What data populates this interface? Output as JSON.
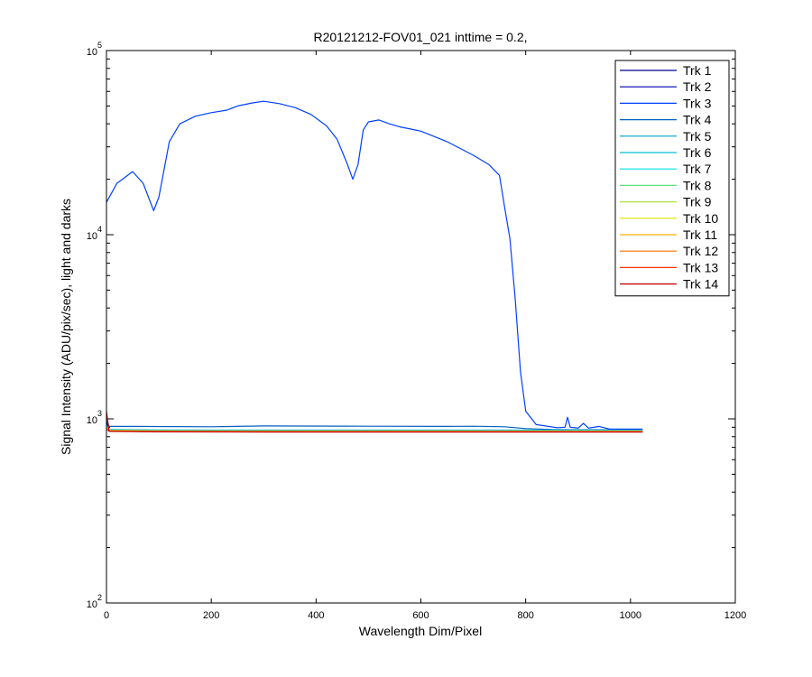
{
  "chart_data": {
    "type": "line",
    "title": "R20121212-FOV01_021 inttime = 0.2,",
    "xlabel": "Wavelength Dim/Pixel",
    "ylabel": "Signal Intensity (ADU/pix/sec), light and darks",
    "xlim": [
      0,
      1200
    ],
    "ylim": [
      100,
      100000
    ],
    "yscale": "log",
    "x_ticks": [
      0,
      200,
      400,
      600,
      800,
      1000,
      1200
    ],
    "x_tick_labels": [
      "0",
      "200",
      "400",
      "600",
      "800",
      "1000",
      "1200"
    ],
    "y_ticks": [
      {
        "value": 100,
        "base": "10",
        "exp": "2"
      },
      {
        "value": 1000,
        "base": "10",
        "exp": "3"
      },
      {
        "value": 10000,
        "base": "10",
        "exp": "4"
      },
      {
        "value": 100000,
        "base": "10",
        "exp": "5"
      }
    ],
    "grid": false,
    "legend_position": "top-right",
    "series": [
      {
        "name": "Trk 1",
        "color": "#00008f",
        "x": [
          0,
          5,
          100,
          300,
          500,
          700,
          900,
          1023
        ],
        "y": [
          1000,
          860,
          855,
          852,
          852,
          852,
          852,
          852
        ]
      },
      {
        "name": "Trk 2",
        "color": "#0000b0",
        "x": [
          0,
          5,
          100,
          300,
          500,
          700,
          900,
          1023
        ],
        "y": [
          950,
          858,
          852,
          850,
          850,
          850,
          850,
          850
        ]
      },
      {
        "name": "Trk 3",
        "color": "#0040ff",
        "x": [
          0,
          20,
          50,
          70,
          90,
          100,
          120,
          140,
          170,
          200,
          230,
          250,
          280,
          300,
          330,
          360,
          390,
          420,
          440,
          460,
          470,
          480,
          490,
          500,
          520,
          540,
          560,
          580,
          600,
          650,
          700,
          730,
          750,
          760,
          770,
          780,
          790,
          800,
          820,
          860,
          875,
          880,
          885,
          900,
          910,
          920,
          940,
          960,
          1000,
          1023
        ],
        "y": [
          15000,
          19000,
          22000,
          19000,
          13500,
          16000,
          32000,
          40000,
          44000,
          46000,
          47500,
          50000,
          52000,
          53000,
          51500,
          49000,
          45000,
          39000,
          33000,
          24000,
          20000,
          24000,
          37000,
          41000,
          42000,
          40000,
          38500,
          37500,
          36500,
          32000,
          27000,
          24000,
          21000,
          14000,
          9500,
          4500,
          1800,
          1100,
          930,
          895,
          900,
          1020,
          900,
          890,
          945,
          890,
          910,
          880,
          880,
          880
        ]
      },
      {
        "name": "Trk 4",
        "color": "#0060c0",
        "x": [
          0,
          5,
          50,
          200,
          300,
          500,
          650,
          700,
          760,
          800,
          850,
          900,
          1000,
          1023
        ],
        "y": [
          1000,
          910,
          910,
          905,
          915,
          912,
          910,
          912,
          905,
          885,
          875,
          872,
          872,
          872
        ]
      },
      {
        "name": "Trk 5",
        "color": "#00a0c8",
        "x": [
          0,
          5,
          100,
          300,
          500,
          700,
          900,
          1023
        ],
        "y": [
          930,
          875,
          870,
          868,
          868,
          868,
          868,
          868
        ]
      },
      {
        "name": "Trk 6",
        "color": "#00c0d0",
        "x": [
          0,
          5,
          100,
          300,
          500,
          700,
          900,
          1023
        ],
        "y": [
          920,
          872,
          866,
          864,
          864,
          864,
          864,
          864
        ]
      },
      {
        "name": "Trk 7",
        "color": "#00e0e0",
        "x": [
          0,
          5,
          100,
          300,
          500,
          700,
          900,
          1023
        ],
        "y": [
          910,
          870,
          864,
          862,
          862,
          862,
          862,
          862
        ]
      },
      {
        "name": "Trk 8",
        "color": "#60e080",
        "x": [
          0,
          5,
          100,
          300,
          500,
          700,
          900,
          1023
        ],
        "y": [
          905,
          868,
          862,
          860,
          860,
          860,
          860,
          860
        ]
      },
      {
        "name": "Trk 9",
        "color": "#b0e040",
        "x": [
          0,
          5,
          100,
          300,
          500,
          700,
          900,
          1023
        ],
        "y": [
          900,
          866,
          860,
          858,
          858,
          858,
          858,
          858
        ]
      },
      {
        "name": "Trk 10",
        "color": "#e0e000",
        "x": [
          0,
          5,
          100,
          300,
          500,
          700,
          900,
          1023
        ],
        "y": [
          895,
          864,
          858,
          856,
          856,
          856,
          856,
          856
        ]
      },
      {
        "name": "Trk 11",
        "color": "#ffb000",
        "x": [
          0,
          5,
          100,
          300,
          500,
          700,
          900,
          1023
        ],
        "y": [
          890,
          862,
          856,
          854,
          854,
          854,
          854,
          854
        ]
      },
      {
        "name": "Trk 12",
        "color": "#ff7000",
        "x": [
          0,
          5,
          100,
          300,
          500,
          700,
          900,
          1023
        ],
        "y": [
          885,
          860,
          854,
          852,
          852,
          852,
          852,
          852
        ]
      },
      {
        "name": "Trk 13",
        "color": "#ff3000",
        "x": [
          0,
          5,
          100,
          300,
          500,
          700,
          900,
          1023
        ],
        "y": [
          880,
          858,
          852,
          850,
          850,
          850,
          850,
          850
        ]
      },
      {
        "name": "Trk 14",
        "color": "#c00000",
        "x": [
          0,
          5,
          100,
          300,
          500,
          700,
          900,
          1023
        ],
        "y": [
          1100,
          856,
          850,
          848,
          848,
          848,
          848,
          848
        ]
      }
    ]
  }
}
